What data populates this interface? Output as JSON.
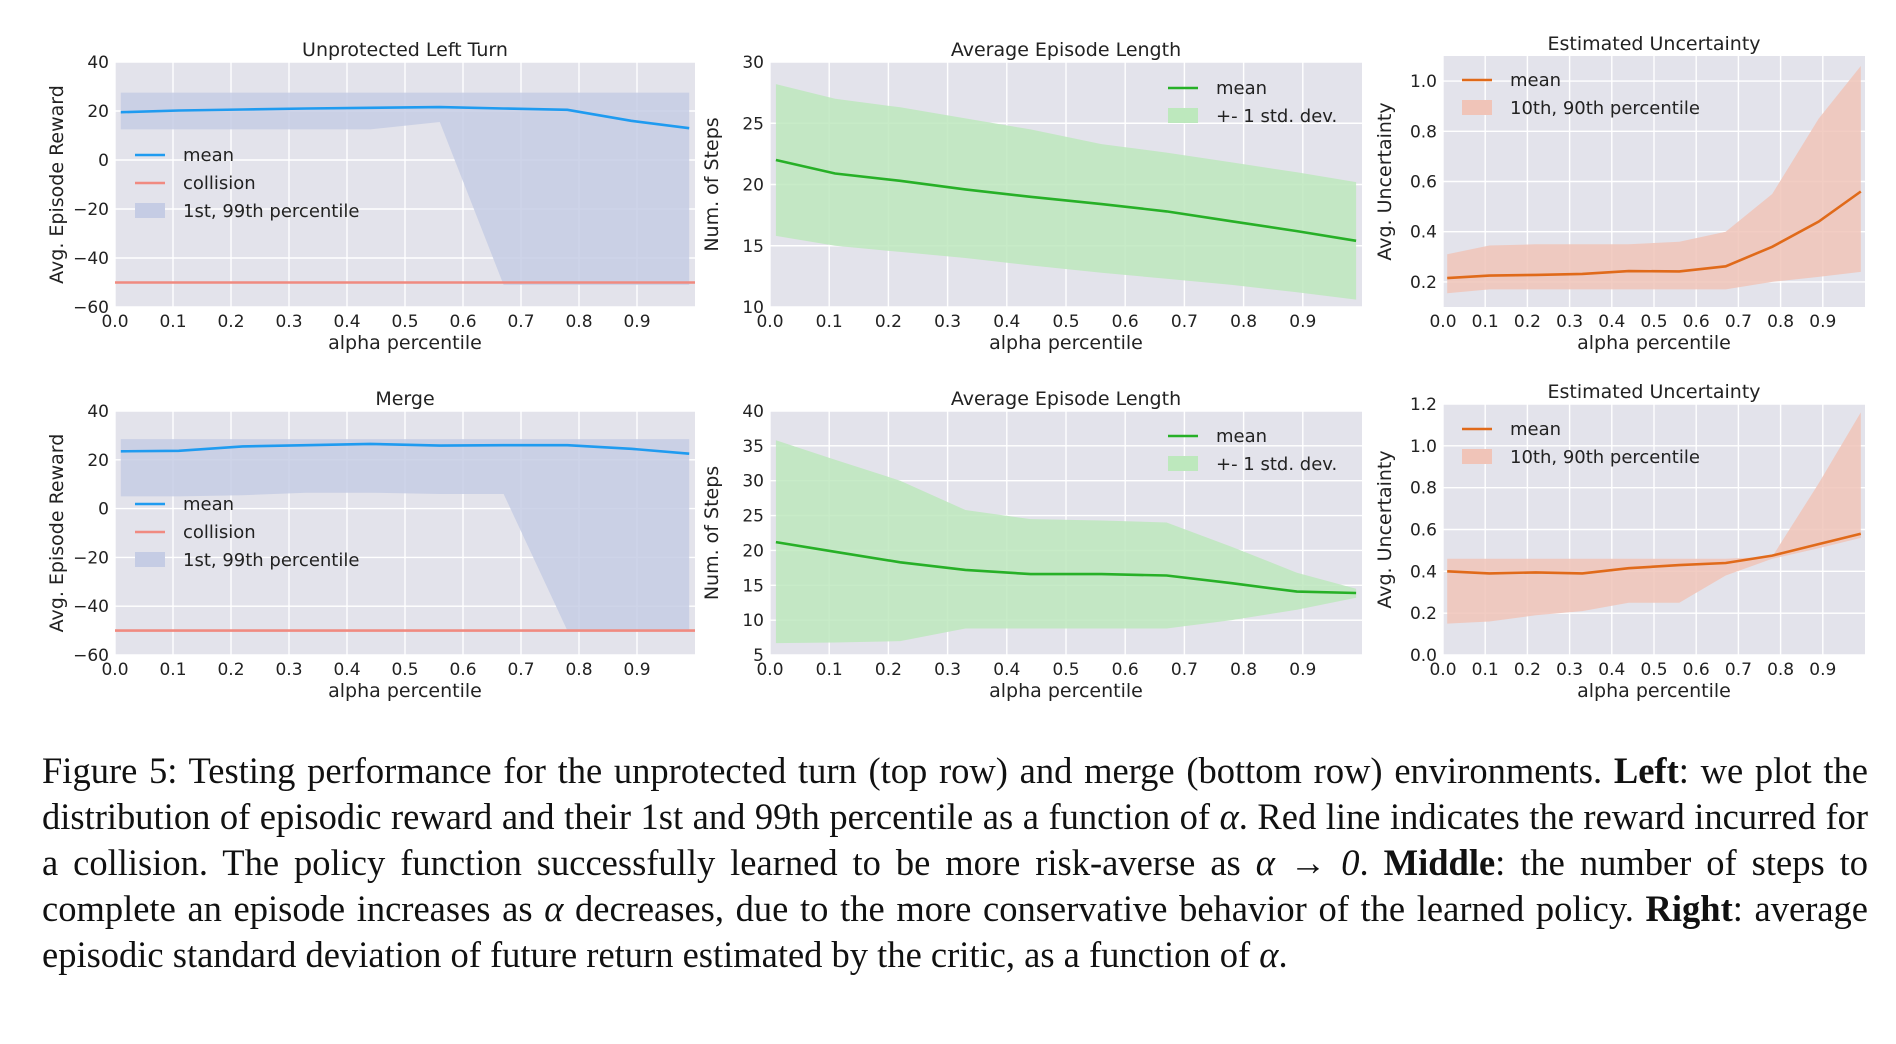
{
  "chart_data": [
    {
      "type": "line",
      "title": "Unprotected Left Turn",
      "xlabel": "alpha percentile",
      "ylabel": "Avg. Episode Reward",
      "xlim": [
        0,
        1
      ],
      "ylim": [
        -60,
        40
      ],
      "xticks": [
        0.0,
        0.1,
        0.2,
        0.3,
        0.4,
        0.5,
        0.6,
        0.7,
        0.8,
        0.9
      ],
      "yticks": [
        -60,
        -40,
        -20,
        0,
        20,
        40
      ],
      "legend_position": "center-left",
      "grid": true,
      "series": [
        {
          "name": "mean",
          "kind": "line",
          "color": "#1f9bf0",
          "x": [
            0.01,
            0.11,
            0.22,
            0.33,
            0.44,
            0.56,
            0.67,
            0.78,
            0.89,
            0.99
          ],
          "y": [
            19.5,
            20.2,
            20.6,
            21.0,
            21.3,
            21.6,
            21.0,
            20.5,
            16.0,
            13.0
          ]
        },
        {
          "name": "collision",
          "kind": "line",
          "color": "#f08a80",
          "x": [
            0.0,
            1.0
          ],
          "y": [
            -50,
            -50
          ]
        },
        {
          "name": "1st, 99th percentile",
          "kind": "band",
          "color": "#c5cce4",
          "x": [
            0.01,
            0.11,
            0.22,
            0.33,
            0.44,
            0.56,
            0.67,
            0.78,
            0.89,
            0.99
          ],
          "lower": [
            12.5,
            12.5,
            12.5,
            12.5,
            12.5,
            15.5,
            -51,
            -51,
            -51,
            -51
          ],
          "upper": [
            27.5,
            27.5,
            27.5,
            27.5,
            27.5,
            27.5,
            27.5,
            27.5,
            27.5,
            27.5
          ]
        }
      ]
    },
    {
      "type": "line",
      "title": "Average Episode Length",
      "xlabel": "alpha percentile",
      "ylabel": "Num. of Steps",
      "xlim": [
        0,
        1
      ],
      "ylim": [
        10,
        30
      ],
      "xticks": [
        0.0,
        0.1,
        0.2,
        0.3,
        0.4,
        0.5,
        0.6,
        0.7,
        0.8,
        0.9
      ],
      "yticks": [
        10,
        15,
        20,
        25,
        30
      ],
      "legend_position": "top-right",
      "grid": true,
      "series": [
        {
          "name": "mean",
          "kind": "line",
          "color": "#27b027",
          "x": [
            0.01,
            0.11,
            0.22,
            0.33,
            0.44,
            0.56,
            0.67,
            0.78,
            0.89,
            0.99
          ],
          "y": [
            22.0,
            20.9,
            20.3,
            19.6,
            19.0,
            18.4,
            17.8,
            17.0,
            16.2,
            15.4
          ]
        },
        {
          "name": "+- 1 std. dev.",
          "kind": "band",
          "color": "#bde8bd",
          "x": [
            0.01,
            0.11,
            0.22,
            0.33,
            0.44,
            0.56,
            0.67,
            0.78,
            0.89,
            0.99
          ],
          "lower": [
            15.8,
            15.0,
            14.5,
            14.0,
            13.4,
            12.8,
            12.3,
            11.8,
            11.2,
            10.6
          ],
          "upper": [
            28.2,
            27.0,
            26.3,
            25.4,
            24.5,
            23.3,
            22.6,
            21.8,
            21.0,
            20.2
          ]
        }
      ]
    },
    {
      "type": "line",
      "title": "Estimated Uncertainty",
      "xlabel": "alpha percentile",
      "ylabel": "Avg. Uncertainty",
      "xlim": [
        0,
        1
      ],
      "ylim": [
        0.1,
        1.1
      ],
      "xticks": [
        0.0,
        0.1,
        0.2,
        0.3,
        0.4,
        0.5,
        0.6,
        0.7,
        0.8,
        0.9
      ],
      "yticks": [
        0.2,
        0.4,
        0.6,
        0.8,
        1.0
      ],
      "legend_position": "top-left",
      "grid": true,
      "series": [
        {
          "name": "mean",
          "kind": "line",
          "color": "#e06a1a",
          "x": [
            0.01,
            0.11,
            0.22,
            0.33,
            0.44,
            0.56,
            0.67,
            0.78,
            0.89,
            0.99
          ],
          "y": [
            0.215,
            0.225,
            0.228,
            0.232,
            0.243,
            0.242,
            0.262,
            0.34,
            0.44,
            0.56
          ]
        },
        {
          "name": "10th, 90th percentile",
          "kind": "band",
          "color": "#f0c4b8",
          "x": [
            0.01,
            0.11,
            0.22,
            0.33,
            0.44,
            0.56,
            0.67,
            0.78,
            0.89,
            0.99
          ],
          "lower": [
            0.155,
            0.17,
            0.17,
            0.17,
            0.17,
            0.17,
            0.17,
            0.2,
            0.22,
            0.24
          ],
          "upper": [
            0.31,
            0.345,
            0.35,
            0.35,
            0.35,
            0.36,
            0.4,
            0.55,
            0.85,
            1.06
          ]
        }
      ]
    },
    {
      "type": "line",
      "title": "Merge",
      "xlabel": "alpha percentile",
      "ylabel": "Avg. Episode Reward",
      "xlim": [
        0,
        1
      ],
      "ylim": [
        -60,
        40
      ],
      "xticks": [
        0.0,
        0.1,
        0.2,
        0.3,
        0.4,
        0.5,
        0.6,
        0.7,
        0.8,
        0.9
      ],
      "yticks": [
        -60,
        -40,
        -20,
        0,
        20,
        40
      ],
      "legend_position": "center-left",
      "grid": true,
      "series": [
        {
          "name": "mean",
          "kind": "line",
          "color": "#1f9bf0",
          "x": [
            0.01,
            0.11,
            0.22,
            0.33,
            0.44,
            0.56,
            0.67,
            0.78,
            0.89,
            0.99
          ],
          "y": [
            23.5,
            23.7,
            25.5,
            26.0,
            26.5,
            25.8,
            26.0,
            26.0,
            24.5,
            22.5
          ]
        },
        {
          "name": "collision",
          "kind": "line",
          "color": "#f08a80",
          "x": [
            0.0,
            1.0
          ],
          "y": [
            -50,
            -50
          ]
        },
        {
          "name": "1st, 99th percentile",
          "kind": "band",
          "color": "#c5cce4",
          "x": [
            0.01,
            0.11,
            0.22,
            0.33,
            0.44,
            0.56,
            0.67,
            0.78,
            0.89,
            0.99
          ],
          "lower": [
            5.0,
            5.0,
            5.5,
            6.5,
            6.5,
            6.0,
            6.0,
            -50,
            -50,
            -50
          ],
          "upper": [
            28.5,
            28.5,
            28.5,
            28.5,
            28.5,
            28.5,
            28.5,
            28.5,
            28.5,
            28.5
          ]
        }
      ]
    },
    {
      "type": "line",
      "title": "Average Episode Length",
      "xlabel": "alpha percentile",
      "ylabel": "Num. of Steps",
      "xlim": [
        0,
        1
      ],
      "ylim": [
        5,
        40
      ],
      "xticks": [
        0.0,
        0.1,
        0.2,
        0.3,
        0.4,
        0.5,
        0.6,
        0.7,
        0.8,
        0.9
      ],
      "yticks": [
        5,
        10,
        15,
        20,
        25,
        30,
        35,
        40
      ],
      "legend_position": "top-right",
      "grid": true,
      "series": [
        {
          "name": "mean",
          "kind": "line",
          "color": "#27b027",
          "x": [
            0.01,
            0.11,
            0.22,
            0.33,
            0.44,
            0.56,
            0.67,
            0.78,
            0.89,
            0.99
          ],
          "y": [
            21.2,
            19.8,
            18.3,
            17.2,
            16.6,
            16.6,
            16.4,
            15.3,
            14.1,
            13.9
          ]
        },
        {
          "name": "+- 1 std. dev.",
          "kind": "band",
          "color": "#bde8bd",
          "x": [
            0.01,
            0.11,
            0.22,
            0.33,
            0.44,
            0.56,
            0.67,
            0.78,
            0.89,
            0.99
          ],
          "lower": [
            6.7,
            6.8,
            7.0,
            8.8,
            8.8,
            8.8,
            8.8,
            10.0,
            11.5,
            13.2
          ],
          "upper": [
            35.8,
            33.0,
            30.0,
            25.8,
            24.5,
            24.3,
            24.0,
            20.5,
            16.8,
            14.5
          ]
        }
      ]
    },
    {
      "type": "line",
      "title": "Estimated Uncertainty",
      "xlabel": "alpha percentile",
      "ylabel": "Avg. Uncertainty",
      "xlim": [
        0,
        1
      ],
      "ylim": [
        0,
        1.2
      ],
      "xticks": [
        0.0,
        0.1,
        0.2,
        0.3,
        0.4,
        0.5,
        0.6,
        0.7,
        0.8,
        0.9
      ],
      "yticks": [
        0.0,
        0.2,
        0.4,
        0.6,
        0.8,
        1.0,
        1.2
      ],
      "legend_position": "top-left",
      "grid": true,
      "series": [
        {
          "name": "mean",
          "kind": "line",
          "color": "#e06a1a",
          "x": [
            0.01,
            0.11,
            0.22,
            0.33,
            0.44,
            0.56,
            0.67,
            0.78,
            0.89,
            0.99
          ],
          "y": [
            0.4,
            0.39,
            0.395,
            0.39,
            0.415,
            0.43,
            0.44,
            0.475,
            0.53,
            0.58
          ]
        },
        {
          "name": "10th, 90th percentile",
          "kind": "band",
          "color": "#f0c4b8",
          "x": [
            0.01,
            0.11,
            0.22,
            0.33,
            0.44,
            0.56,
            0.67,
            0.78,
            0.89,
            0.99
          ],
          "lower": [
            0.15,
            0.16,
            0.19,
            0.21,
            0.25,
            0.25,
            0.38,
            0.46,
            0.51,
            0.56
          ],
          "upper": [
            0.46,
            0.46,
            0.46,
            0.46,
            0.46,
            0.46,
            0.46,
            0.47,
            0.82,
            1.16
          ]
        }
      ]
    }
  ],
  "caption": {
    "figure_label": "Figure 5:",
    "intro": " Testing performance for the unprotected turn (top row) and merge (bottom row) environments. ",
    "left_label": "Left",
    "left_text_a": ": we plot the distribution of episodic reward and their 1st and 99th percentile as a function of ",
    "alpha": "α",
    "left_text_b": ". Red line indicates the reward incurred for a collision. The policy function successfully learned to be more risk-averse as ",
    "alpha_to_zero": "α → 0",
    "left_text_c": ". ",
    "middle_label": "Middle",
    "middle_text_a": ": the number of steps to complete an episode increases as ",
    "middle_text_b": " decreases, due to the more conservative behavior of the learned policy. ",
    "right_label": "Right",
    "right_text_a": ": average episodic standard deviation of future return estimated by the critic, as a function of ",
    "right_text_b": "."
  }
}
